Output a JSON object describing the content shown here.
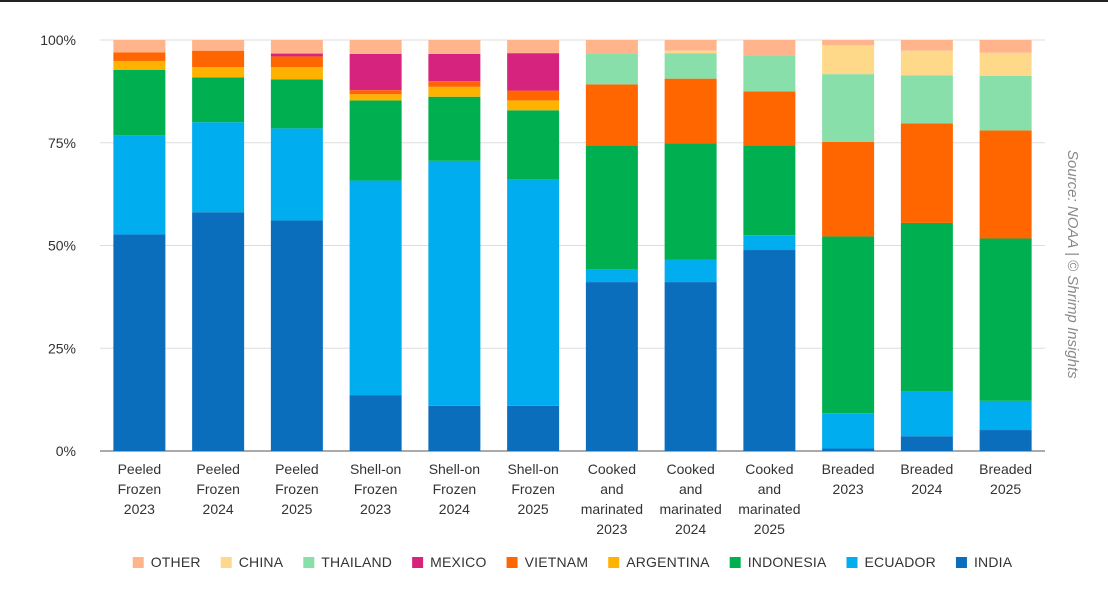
{
  "source": "Source: NOAA | © Shrimp Insights",
  "chart_data": {
    "type": "bar",
    "stacked": true,
    "normalized": true,
    "categories": [
      [
        "Peeled",
        "Frozen",
        "2023"
      ],
      [
        "Peeled",
        "Frozen",
        "2024"
      ],
      [
        "Peeled",
        "Frozen",
        "2025"
      ],
      [
        "Shell-on",
        "Frozen",
        "2023"
      ],
      [
        "Shell-on",
        "Frozen",
        "2024"
      ],
      [
        "Shell-on",
        "Frozen",
        "2025"
      ],
      [
        "Cooked",
        "and",
        "marinated",
        "2023"
      ],
      [
        "Cooked",
        "and",
        "marinated",
        "2024"
      ],
      [
        "Cooked",
        "and",
        "marinated",
        "2025"
      ],
      [
        "Breaded",
        "2023"
      ],
      [
        "Breaded",
        "2024"
      ],
      [
        "Breaded",
        "2025"
      ]
    ],
    "y_ticks": [
      "0%",
      "25%",
      "50%",
      "75%",
      "100%"
    ],
    "ylim": [
      0,
      100
    ],
    "legend_position": "bottom",
    "grid": true,
    "series": [
      {
        "name": "INDIA",
        "color": "#0a6ebd",
        "values": [
          52.7,
          58.1,
          56.1,
          13.6,
          11.0,
          11.0,
          41.1,
          41.1,
          48.9,
          0.6,
          3.6,
          5.1
        ]
      },
      {
        "name": "ECUADOR",
        "color": "#00aeef",
        "values": [
          24.1,
          21.9,
          22.4,
          52.2,
          59.6,
          55.0,
          3.0,
          5.5,
          3.6,
          8.6,
          10.9,
          7.1
        ]
      },
      {
        "name": "INDONESIA",
        "color": "#00b050",
        "values": [
          15.9,
          10.9,
          11.9,
          19.5,
          15.6,
          16.9,
          30.3,
          28.3,
          21.9,
          43.0,
          41.0,
          39.5
        ]
      },
      {
        "name": "ARGENTINA",
        "color": "#ffb300",
        "values": [
          2.2,
          2.5,
          3.0,
          1.5,
          2.4,
          2.4,
          0,
          0,
          0,
          0,
          0,
          0
        ]
      },
      {
        "name": "VIETNAM",
        "color": "#ff6600",
        "values": [
          2.1,
          4.0,
          2.6,
          1.0,
          1.4,
          2.4,
          14.8,
          15.7,
          13.1,
          23.0,
          24.2,
          26.3
        ]
      },
      {
        "name": "MEXICO",
        "color": "#d6247e",
        "values": [
          0,
          0,
          0.7,
          8.8,
          6.6,
          9.1,
          0,
          0,
          0,
          0,
          0,
          0
        ]
      },
      {
        "name": "THAILAND",
        "color": "#88dfaa",
        "values": [
          0,
          0,
          0,
          0,
          0,
          0,
          7.6,
          6.2,
          8.6,
          16.5,
          11.7,
          13.3
        ]
      },
      {
        "name": "CHINA",
        "color": "#ffd98a",
        "values": [
          0,
          0,
          0,
          0,
          0,
          0,
          0,
          0.6,
          0,
          7.0,
          6.0,
          5.6
        ]
      },
      {
        "name": "OTHER",
        "color": "#ffb48c",
        "values": [
          3.0,
          2.6,
          3.3,
          3.4,
          3.4,
          3.2,
          3.2,
          2.6,
          3.9,
          1.3,
          2.6,
          3.1
        ]
      }
    ],
    "legend_order": [
      "OTHER",
      "CHINA",
      "THAILAND",
      "MEXICO",
      "VIETNAM",
      "ARGENTINA",
      "INDONESIA",
      "ECUADOR",
      "INDIA"
    ]
  }
}
